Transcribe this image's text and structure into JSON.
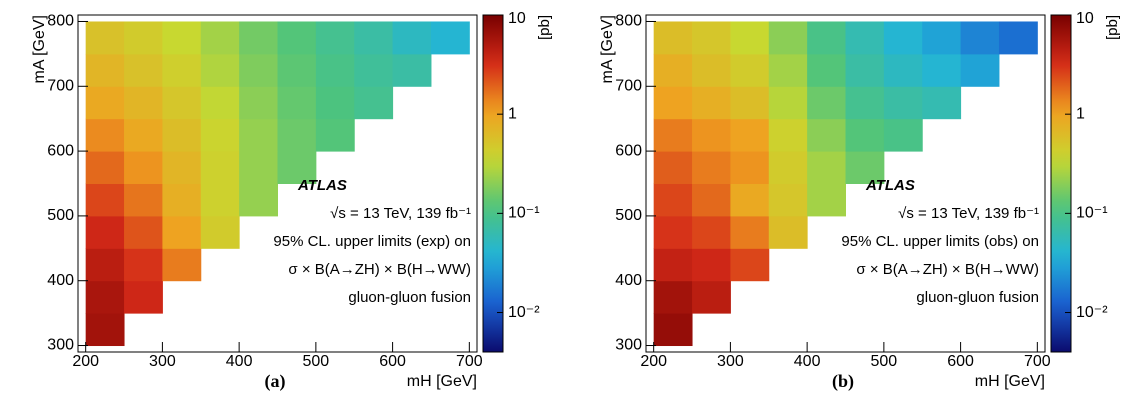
{
  "chart_data": [
    {
      "type": "heatmap",
      "panel_label": "(a)",
      "x_label": "mH [GeV]",
      "y_label": "mA [GeV]",
      "colorbar_label": "[pb]",
      "annotations": [
        "ATLAS",
        "√s = 13 TeV, 139 fb⁻¹",
        "95% CL. upper limits (exp) on",
        "σ × B(A→ZH) × B(H→WW)",
        "gluon-gluon fusion"
      ],
      "x_bins": [
        200,
        250,
        300,
        350,
        400,
        450,
        500,
        550,
        600,
        650,
        700
      ],
      "y_bins": [
        300,
        350,
        400,
        450,
        500,
        550,
        600,
        650,
        700,
        750,
        800
      ],
      "z": [
        [
          6,
          null,
          null,
          null,
          null,
          null,
          null,
          null,
          null,
          null
        ],
        [
          5.5,
          3.5,
          null,
          null,
          null,
          null,
          null,
          null,
          null,
          null
        ],
        [
          4.5,
          3,
          1.5,
          null,
          null,
          null,
          null,
          null,
          null,
          null
        ],
        [
          3.5,
          2.2,
          1.0,
          0.45,
          null,
          null,
          null,
          null,
          null,
          null
        ],
        [
          2.5,
          1.6,
          0.8,
          0.4,
          0.22,
          null,
          null,
          null,
          null,
          null
        ],
        [
          1.8,
          1.2,
          0.7,
          0.4,
          0.22,
          0.15,
          null,
          null,
          null,
          null
        ],
        [
          1.3,
          0.9,
          0.6,
          0.38,
          0.22,
          0.15,
          0.12,
          null,
          null,
          null
        ],
        [
          0.9,
          0.7,
          0.5,
          0.33,
          0.2,
          0.14,
          0.11,
          0.09,
          null,
          null
        ],
        [
          0.7,
          0.55,
          0.42,
          0.28,
          0.18,
          0.13,
          0.1,
          0.08,
          0.07,
          null
        ],
        [
          0.55,
          0.45,
          0.35,
          0.25,
          0.16,
          0.12,
          0.09,
          0.07,
          0.05,
          0.04
        ]
      ],
      "xlim": [
        190,
        710
      ],
      "ylim": [
        290,
        810
      ],
      "xticks": [
        200,
        300,
        400,
        500,
        600,
        700
      ],
      "yticks": [
        300,
        400,
        500,
        600,
        700,
        800
      ],
      "zlim": [
        0.004,
        10
      ],
      "zlog": true,
      "zticks": [
        {
          "value": 0.01,
          "label": "10⁻²"
        },
        {
          "value": 0.1,
          "label": "10⁻¹"
        },
        1,
        10
      ],
      "colormap": [
        "#0b0b6e",
        "#1a5fd0",
        "#22b4d8",
        "#4ec47c",
        "#c8d830",
        "#f0a020",
        "#d42a18",
        "#780000"
      ]
    },
    {
      "type": "heatmap",
      "panel_label": "(b)",
      "x_label": "mH [GeV]",
      "y_label": "mA [GeV]",
      "colorbar_label": "[pb]",
      "annotations": [
        "ATLAS",
        "√s = 13 TeV, 139 fb⁻¹",
        "95% CL. upper limits (obs) on",
        "σ × B(A→ZH) × B(H→WW)",
        "gluon-gluon fusion"
      ],
      "x_bins": [
        200,
        250,
        300,
        350,
        400,
        450,
        500,
        550,
        600,
        650,
        700
      ],
      "y_bins": [
        300,
        350,
        400,
        450,
        500,
        550,
        600,
        650,
        700,
        750,
        800
      ],
      "z": [
        [
          7,
          null,
          null,
          null,
          null,
          null,
          null,
          null,
          null,
          null
        ],
        [
          6,
          4.5,
          null,
          null,
          null,
          null,
          null,
          null,
          null,
          null
        ],
        [
          4,
          3.5,
          2.5,
          null,
          null,
          null,
          null,
          null,
          null,
          null
        ],
        [
          3,
          2.5,
          1.5,
          0.6,
          null,
          null,
          null,
          null,
          null,
          null
        ],
        [
          2.5,
          1.8,
          0.9,
          0.5,
          0.25,
          null,
          null,
          null,
          null,
          null
        ],
        [
          2,
          1.5,
          1.2,
          0.45,
          0.25,
          0.15,
          null,
          null,
          null,
          null
        ],
        [
          1.5,
          1.2,
          1.0,
          0.4,
          0.2,
          0.12,
          0.1,
          null,
          null,
          null
        ],
        [
          1.0,
          0.8,
          0.6,
          0.3,
          0.15,
          0.09,
          0.07,
          0.06,
          null,
          null
        ],
        [
          0.8,
          0.6,
          0.45,
          0.25,
          0.12,
          0.07,
          0.05,
          0.04,
          0.03,
          null
        ],
        [
          0.6,
          0.5,
          0.35,
          0.2,
          0.1,
          0.06,
          0.04,
          0.03,
          0.02,
          0.015
        ]
      ],
      "xlim": [
        190,
        710
      ],
      "ylim": [
        290,
        810
      ],
      "xticks": [
        200,
        300,
        400,
        500,
        600,
        700
      ],
      "yticks": [
        300,
        400,
        500,
        600,
        700,
        800
      ],
      "zlim": [
        0.004,
        10
      ],
      "zlog": true,
      "zticks": [
        {
          "value": 0.01,
          "label": "10⁻²"
        },
        {
          "value": 0.1,
          "label": "10⁻¹"
        },
        1,
        10
      ],
      "colormap": [
        "#0b0b6e",
        "#1a5fd0",
        "#22b4d8",
        "#4ec47c",
        "#c8d830",
        "#f0a020",
        "#d42a18",
        "#780000"
      ]
    }
  ]
}
